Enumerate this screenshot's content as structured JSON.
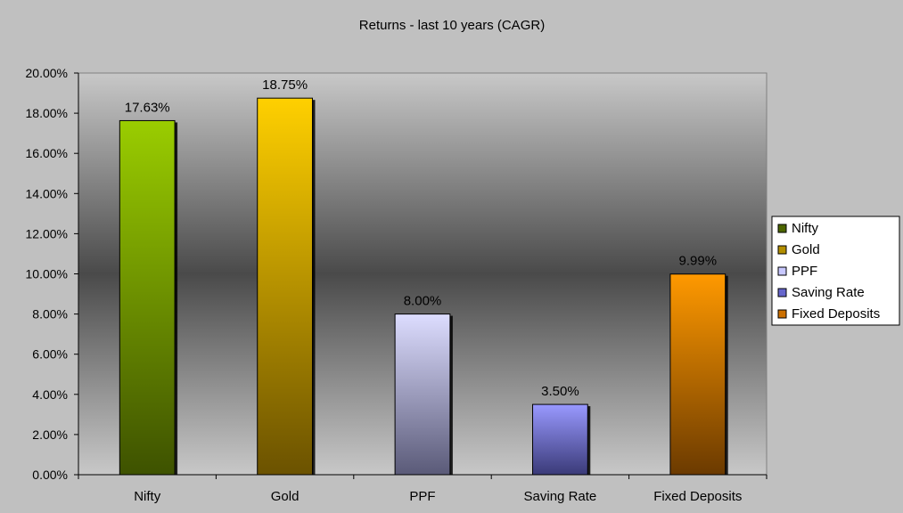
{
  "chart_data": {
    "type": "bar",
    "title": "Returns - last 10 years (CAGR)",
    "categories": [
      "Nifty",
      "Gold",
      "PPF",
      "Saving Rate",
      "Fixed Deposits"
    ],
    "values": [
      17.63,
      18.75,
      8.0,
      3.5,
      9.99
    ],
    "data_labels": [
      "17.63%",
      "18.75%",
      "8.00%",
      "3.50%",
      "9.99%"
    ],
    "xlabel": "",
    "ylabel": "",
    "ylim": [
      0,
      20
    ],
    "yticks": [
      0,
      2,
      4,
      6,
      8,
      10,
      12,
      14,
      16,
      18,
      20
    ],
    "ytick_labels": [
      "0.00%",
      "2.00%",
      "4.00%",
      "6.00%",
      "8.00%",
      "10.00%",
      "12.00%",
      "14.00%",
      "16.00%",
      "18.00%",
      "20.00%"
    ],
    "grid": false,
    "legend": {
      "placement": "right",
      "entries": [
        "Nifty",
        "Gold",
        "PPF",
        "Saving Rate",
        "Fixed Deposits"
      ]
    },
    "colors": {
      "Nifty": [
        "#9acd00",
        "#3e5200"
      ],
      "Gold": [
        "#ffd000",
        "#6b5200"
      ],
      "PPF": [
        "#ddddff",
        "#5a5a78"
      ],
      "Saving Rate": [
        "#9999ff",
        "#3a3a78"
      ],
      "Fixed Deposits": [
        "#ff9900",
        "#6b3a00"
      ]
    },
    "legend_swatch_colors": [
      "#4d6600",
      "#b38f00",
      "#c8c8ff",
      "#6666cc",
      "#cc7000"
    ],
    "plot_background": [
      "#c8c8c8",
      "#4a4a4a"
    ]
  }
}
